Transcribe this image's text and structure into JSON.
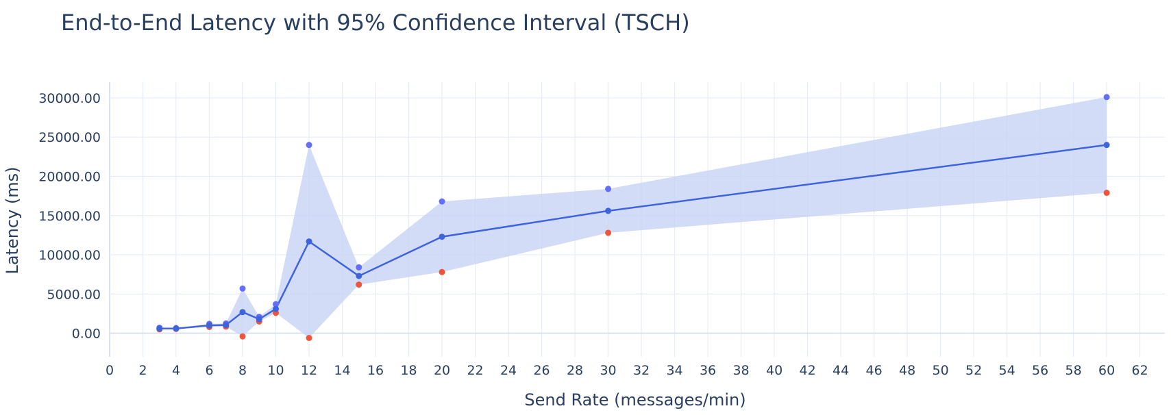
{
  "chart_data": {
    "type": "line",
    "title": "End-to-End Latency with 95% Confidence Interval (TSCH)",
    "xlabel": "Send Rate (messages/min)",
    "ylabel": "Latency (ms)",
    "xlim": [
      0,
      63.5
    ],
    "ylim": [
      -3000,
      32000
    ],
    "x_ticks": [
      0,
      2,
      4,
      6,
      8,
      10,
      12,
      14,
      16,
      18,
      20,
      22,
      24,
      26,
      28,
      30,
      32,
      34,
      36,
      38,
      40,
      42,
      44,
      46,
      48,
      50,
      52,
      54,
      56,
      58,
      60,
      62
    ],
    "y_ticks": [
      0,
      5000,
      10000,
      15000,
      20000,
      25000,
      30000
    ],
    "y_tick_format": "0.00",
    "grid": true,
    "x": [
      3,
      4,
      6,
      7,
      8,
      9,
      10,
      12,
      15,
      20,
      30,
      60
    ],
    "series": [
      {
        "role": "mean",
        "values": [
          600,
          600,
          1000,
          1050,
          2700,
          1800,
          3100,
          11700,
          7300,
          12300,
          15600,
          24000
        ]
      },
      {
        "role": "upper_ci",
        "values": [
          700,
          650,
          1200,
          1250,
          5700,
          2100,
          3700,
          24000,
          8400,
          16800,
          18400,
          30100
        ]
      },
      {
        "role": "lower_ci",
        "values": [
          500,
          550,
          800,
          850,
          -400,
          1500,
          2600,
          -600,
          6200,
          7800,
          12800,
          17900
        ]
      }
    ],
    "colors": {
      "line": "#3d63dd",
      "upper": "#636efa",
      "lower": "#ef553b",
      "band": "#c8d3f5"
    }
  }
}
